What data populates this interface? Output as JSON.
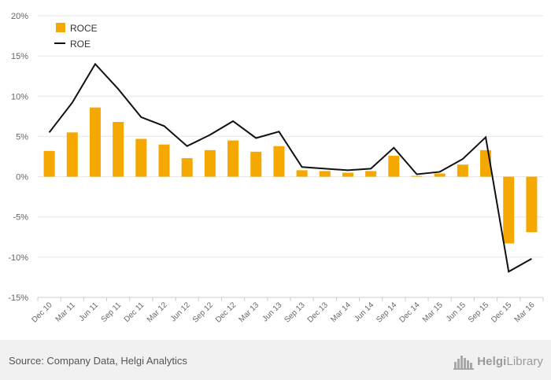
{
  "chart_data": {
    "type": "bar",
    "categories": [
      "Dec 10",
      "Mar 11",
      "Jun 11",
      "Sep 11",
      "Dec 11",
      "Mar 12",
      "Jun 12",
      "Sep 12",
      "Dec 12",
      "Mar 13",
      "Jun 13",
      "Sep 13",
      "Dec 13",
      "Mar 14",
      "Jun 14",
      "Sep 14",
      "Dec 14",
      "Mar 15",
      "Jun 15",
      "Sep 15",
      "Dec 15",
      "Mar 16"
    ],
    "series": [
      {
        "name": "ROCE",
        "type": "bar",
        "color": "#f5a800",
        "values": [
          3.2,
          5.5,
          8.6,
          6.8,
          4.7,
          4.0,
          2.3,
          3.3,
          4.5,
          3.1,
          3.8,
          0.8,
          0.7,
          0.5,
          0.7,
          2.6,
          0.1,
          0.4,
          1.5,
          3.3,
          -8.3,
          -6.9
        ]
      },
      {
        "name": "ROE",
        "type": "line",
        "color": "#111111",
        "values": [
          5.5,
          9.2,
          14.0,
          10.9,
          7.4,
          6.3,
          3.8,
          5.2,
          6.9,
          4.8,
          5.6,
          1.2,
          1.0,
          0.8,
          1.0,
          3.6,
          0.3,
          0.6,
          2.2,
          4.9,
          -11.8,
          -10.2
        ]
      }
    ],
    "yticks": [
      "20%",
      "15%",
      "10%",
      "5%",
      "0%",
      "-5%",
      "-10%",
      "-15%"
    ],
    "ylim": [
      -15,
      20
    ],
    "grid": true,
    "legend": "top-left"
  },
  "legend": {
    "roce": "ROCE",
    "roe": "ROE"
  },
  "footer": {
    "source": "Source: Company Data, Helgi Analytics",
    "logo_prefix": "Helgi",
    "logo_suffix": "Library"
  },
  "colors": {
    "bar": "#f5a800",
    "line": "#111111",
    "grid": "#e6e6e6",
    "footer_bg": "#f1f1f1"
  },
  "icons": {
    "logo": "helgi-library-skyline-icon"
  }
}
